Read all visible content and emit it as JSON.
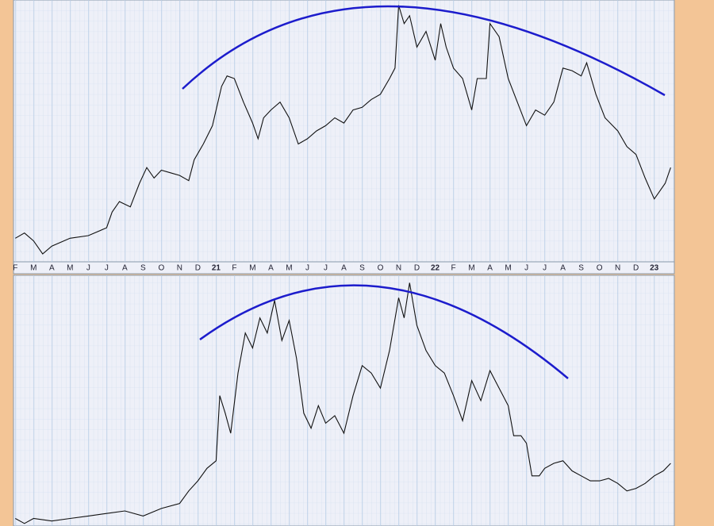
{
  "chart_data": [
    {
      "type": "line",
      "color": "#111111",
      "xlim": [
        -0.1,
        36.1
      ],
      "ylim": [
        0,
        100
      ],
      "xticks": [
        {
          "value": 0,
          "label": "F"
        },
        {
          "value": 1,
          "label": "M"
        },
        {
          "value": 2,
          "label": "A"
        },
        {
          "value": 3,
          "label": "M"
        },
        {
          "value": 4,
          "label": "J"
        },
        {
          "value": 5,
          "label": "J"
        },
        {
          "value": 6,
          "label": "A"
        },
        {
          "value": 7,
          "label": "S"
        },
        {
          "value": 8,
          "label": "O"
        },
        {
          "value": 9,
          "label": "N"
        },
        {
          "value": 10,
          "label": "D"
        },
        {
          "value": 11,
          "label": "21"
        },
        {
          "value": 12,
          "label": "F"
        },
        {
          "value": 13,
          "label": "M"
        },
        {
          "value": 14,
          "label": "A"
        },
        {
          "value": 15,
          "label": "M"
        },
        {
          "value": 16,
          "label": "J"
        },
        {
          "value": 17,
          "label": "J"
        },
        {
          "value": 18,
          "label": "A"
        },
        {
          "value": 19,
          "label": "S"
        },
        {
          "value": 20,
          "label": "O"
        },
        {
          "value": 21,
          "label": "N"
        },
        {
          "value": 22,
          "label": "D"
        },
        {
          "value": 23,
          "label": "22"
        },
        {
          "value": 24,
          "label": "F"
        },
        {
          "value": 25,
          "label": "M"
        },
        {
          "value": 26,
          "label": "A"
        },
        {
          "value": 27,
          "label": "M"
        },
        {
          "value": 28,
          "label": "J"
        },
        {
          "value": 29,
          "label": "J"
        },
        {
          "value": 30,
          "label": "A"
        },
        {
          "value": 31,
          "label": "S"
        },
        {
          "value": 32,
          "label": "O"
        },
        {
          "value": 33,
          "label": "N"
        },
        {
          "value": 34,
          "label": "D"
        },
        {
          "value": 35,
          "label": "23"
        }
      ],
      "x": [
        0,
        0.5,
        1,
        1.5,
        2,
        3,
        4,
        5,
        5.3,
        5.7,
        6.3,
        6.8,
        7.2,
        7.6,
        8,
        8.5,
        9,
        9.5,
        9.8,
        10.3,
        10.8,
        11.3,
        11.6,
        12,
        12.5,
        13,
        13.3,
        13.6,
        14,
        14.5,
        15,
        15.5,
        16,
        16.5,
        17,
        17.5,
        18,
        18.5,
        19,
        19.5,
        20,
        20.5,
        20.8,
        21,
        21.3,
        21.6,
        22,
        22.5,
        23,
        23.3,
        23.6,
        24,
        24.5,
        25,
        25.3,
        25.8,
        26,
        26.5,
        27,
        27.5,
        28,
        28.5,
        29,
        29.5,
        30,
        30.5,
        31,
        31.3,
        31.8,
        32.3,
        33,
        33.5,
        34,
        34.5,
        35,
        35.3,
        35.6,
        35.9
      ],
      "values": [
        9,
        11,
        8,
        3,
        6,
        9,
        10,
        13,
        19,
        23,
        21,
        30,
        36,
        32,
        35,
        34,
        33,
        31,
        39,
        45,
        52,
        67,
        71,
        70,
        61,
        53,
        47,
        55,
        58,
        61,
        55,
        45,
        47,
        50,
        52,
        55,
        53,
        58,
        59,
        62,
        64,
        70,
        74,
        98,
        91,
        94,
        82,
        88,
        77,
        91,
        82,
        74,
        70,
        58,
        70,
        70,
        91,
        86,
        70,
        61,
        52,
        58,
        56,
        61,
        74,
        73,
        71,
        76,
        64,
        55,
        50,
        44,
        41,
        32,
        24,
        27,
        30,
        36
      ]
    },
    {
      "type": "line",
      "color": "#111111",
      "xlim": [
        -0.1,
        36.1
      ],
      "ylim": [
        0,
        100
      ],
      "x": [
        0,
        0.5,
        1,
        2,
        3,
        4,
        5,
        6,
        7,
        8,
        9,
        9.5,
        10,
        10.5,
        11,
        11.2,
        11.5,
        11.8,
        12.2,
        12.6,
        13,
        13.4,
        13.8,
        14.2,
        14.6,
        15,
        15.4,
        15.8,
        16.2,
        16.6,
        17,
        17.5,
        18,
        18.5,
        19,
        19.5,
        20,
        20.5,
        21,
        21.3,
        21.6,
        22,
        22.5,
        23,
        23.5,
        24,
        24.5,
        25,
        25.5,
        26,
        26.5,
        27,
        27.3,
        27.7,
        28,
        28.3,
        28.7,
        29,
        29.5,
        30,
        30.5,
        31,
        31.5,
        32,
        32.5,
        33,
        33.5,
        34,
        34.5,
        35,
        35.5,
        35.9
      ],
      "values": [
        3,
        1,
        3,
        2,
        3,
        4,
        5,
        6,
        4,
        7,
        9,
        14,
        18,
        23,
        26,
        52,
        45,
        37,
        61,
        77,
        71,
        83,
        77,
        90,
        74,
        82,
        67,
        45,
        39,
        48,
        41,
        44,
        37,
        52,
        64,
        61,
        55,
        70,
        91,
        83,
        97,
        80,
        70,
        64,
        61,
        52,
        42,
        58,
        50,
        62,
        55,
        48,
        36,
        36,
        33,
        20,
        20,
        23,
        25,
        26,
        22,
        20,
        18,
        18,
        19,
        17,
        14,
        15,
        17,
        20,
        22,
        25
      ]
    }
  ]
}
